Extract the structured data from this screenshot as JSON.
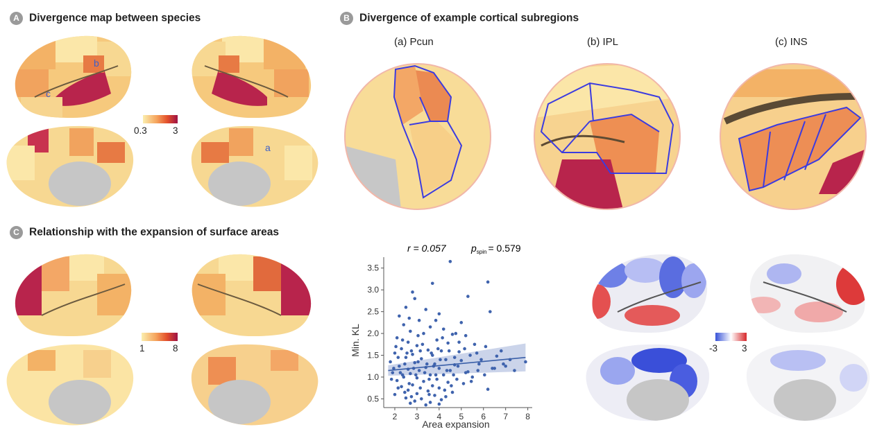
{
  "panels": {
    "A": {
      "badge": "A",
      "title": "Divergence map between species",
      "callouts": [
        "b",
        "c",
        "a"
      ],
      "colorbar": {
        "min_label": "0.3",
        "max_label": "3",
        "colors": [
          "#fbeeae",
          "#f5a35c",
          "#e3502b",
          "#9e1245"
        ]
      }
    },
    "B": {
      "badge": "B",
      "title": "Divergence of example cortical subregions",
      "subregions": [
        "(a) Pcun",
        "(b) IPL",
        "(c) INS"
      ]
    },
    "C": {
      "badge": "C",
      "title": "Relationship with the expansion of surface areas",
      "colorbar_area": {
        "min_label": "1",
        "max_label": "8",
        "colors": [
          "#fbeeae",
          "#f5a35c",
          "#e3502b",
          "#9e1245"
        ]
      },
      "colorbar_diff": {
        "min_label": "-3",
        "max_label": "3",
        "colors": [
          "#3752d8",
          "#ffffff",
          "#d7282b"
        ]
      }
    }
  },
  "chart_data": {
    "type": "scatter",
    "title_r": "r = 0.057",
    "title_p_sym": "p",
    "title_p_sub": "spin",
    "title_p_val": "= 0.579",
    "xlabel": "Area expansion",
    "ylabel": "Min. KL",
    "xlim": [
      1.5,
      8.2
    ],
    "ylim": [
      0.3,
      3.75
    ],
    "xticks": [
      "2",
      "3",
      "4",
      "5",
      "6",
      "7",
      "8"
    ],
    "yticks": [
      "0.5",
      "1.0",
      "1.5",
      "2.0",
      "2.5",
      "3.0",
      "3.5"
    ],
    "fit": {
      "x": [
        1.7,
        7.9
      ],
      "y": [
        1.15,
        1.45
      ],
      "ci_half_width_start": 0.12,
      "ci_half_width_end": 0.32
    },
    "points": [
      [
        4.5,
        3.65
      ],
      [
        3.7,
        3.15
      ],
      [
        6.2,
        3.18
      ],
      [
        2.8,
        2.95
      ],
      [
        5.3,
        2.85
      ],
      [
        2.9,
        2.8
      ],
      [
        2.5,
        2.6
      ],
      [
        3.4,
        2.55
      ],
      [
        6.3,
        2.5
      ],
      [
        2.2,
        2.4
      ],
      [
        4.0,
        2.45
      ],
      [
        3.1,
        2.3
      ],
      [
        5.0,
        2.25
      ],
      [
        2.4,
        2.2
      ],
      [
        3.6,
        2.15
      ],
      [
        4.2,
        2.1
      ],
      [
        2.7,
        2.05
      ],
      [
        3.3,
        2.0
      ],
      [
        4.6,
        1.98
      ],
      [
        5.2,
        1.95
      ],
      [
        2.1,
        1.9
      ],
      [
        3.9,
        1.85
      ],
      [
        2.6,
        1.8
      ],
      [
        4.4,
        1.78
      ],
      [
        5.6,
        1.75
      ],
      [
        3.0,
        1.72
      ],
      [
        6.1,
        1.7
      ],
      [
        2.3,
        1.65
      ],
      [
        3.5,
        1.62
      ],
      [
        4.1,
        1.6
      ],
      [
        4.9,
        1.58
      ],
      [
        2.0,
        1.55
      ],
      [
        2.8,
        1.52
      ],
      [
        3.7,
        1.5
      ],
      [
        5.4,
        1.5
      ],
      [
        6.6,
        1.48
      ],
      [
        2.5,
        1.45
      ],
      [
        3.2,
        1.42
      ],
      [
        4.3,
        1.4
      ],
      [
        5.0,
        1.38
      ],
      [
        1.8,
        1.35
      ],
      [
        2.9,
        1.33
      ],
      [
        3.8,
        1.3
      ],
      [
        4.7,
        1.28
      ],
      [
        5.8,
        1.3
      ],
      [
        7.0,
        1.25
      ],
      [
        2.2,
        1.25
      ],
      [
        3.4,
        1.22
      ],
      [
        4.0,
        1.2
      ],
      [
        6.4,
        1.2
      ],
      [
        2.6,
        1.18
      ],
      [
        3.1,
        1.15
      ],
      [
        4.5,
        1.15
      ],
      [
        5.3,
        1.12
      ],
      [
        1.9,
        1.1
      ],
      [
        2.7,
        1.08
      ],
      [
        3.6,
        1.05
      ],
      [
        4.2,
        1.05
      ],
      [
        5.5,
        1.0
      ],
      [
        2.4,
        1.0
      ],
      [
        3.0,
        0.98
      ],
      [
        3.9,
        0.95
      ],
      [
        4.8,
        0.95
      ],
      [
        2.1,
        0.92
      ],
      [
        3.3,
        0.9
      ],
      [
        4.4,
        0.88
      ],
      [
        5.1,
        0.85
      ],
      [
        2.8,
        0.82
      ],
      [
        3.7,
        0.8
      ],
      [
        2.3,
        0.78
      ],
      [
        4.0,
        0.75
      ],
      [
        6.2,
        0.72
      ],
      [
        2.6,
        0.7
      ],
      [
        3.5,
        0.68
      ],
      [
        4.6,
        0.65
      ],
      [
        3.0,
        0.62
      ],
      [
        2.0,
        0.6
      ],
      [
        3.8,
        0.58
      ],
      [
        4.3,
        0.55
      ],
      [
        2.5,
        0.52
      ],
      [
        3.2,
        0.5
      ],
      [
        4.1,
        0.48
      ],
      [
        2.9,
        0.45
      ],
      [
        3.6,
        0.42
      ],
      [
        2.7,
        0.4
      ],
      [
        4.0,
        0.38
      ],
      [
        3.4,
        0.36
      ],
      [
        4.7,
        1.45
      ],
      [
        5.7,
        1.55
      ],
      [
        6.8,
        1.6
      ],
      [
        7.4,
        1.15
      ],
      [
        7.9,
        1.35
      ],
      [
        6.9,
        1.3
      ],
      [
        2.05,
        1.7
      ],
      [
        2.35,
        1.05
      ],
      [
        2.75,
        1.6
      ],
      [
        3.05,
        1.35
      ],
      [
        3.25,
        1.75
      ],
      [
        3.55,
        0.95
      ],
      [
        3.75,
        1.25
      ],
      [
        4.15,
        1.9
      ],
      [
        4.35,
        1.15
      ],
      [
        4.55,
        0.8
      ],
      [
        4.85,
        1.25
      ],
      [
        5.15,
        1.65
      ],
      [
        5.45,
        0.9
      ],
      [
        5.75,
        1.15
      ],
      [
        6.05,
        1.05
      ],
      [
        1.95,
        1.2
      ],
      [
        2.15,
        1.45
      ],
      [
        2.45,
        1.3
      ],
      [
        2.65,
        0.85
      ],
      [
        2.85,
        1.2
      ],
      [
        3.15,
        1.6
      ],
      [
        3.45,
        1.3
      ],
      [
        3.65,
        1.55
      ],
      [
        3.85,
        1.05
      ],
      [
        4.05,
        1.4
      ],
      [
        4.25,
        0.7
      ],
      [
        4.45,
        1.6
      ],
      [
        4.65,
        1.05
      ],
      [
        2.25,
        1.1
      ],
      [
        2.55,
        1.55
      ],
      [
        2.95,
        1.05
      ],
      [
        3.35,
        1.1
      ],
      [
        3.95,
        1.65
      ],
      [
        2.45,
        0.65
      ],
      [
        3.55,
        0.6
      ],
      [
        4.9,
        1.8
      ],
      [
        5.9,
        1.4
      ],
      [
        2.15,
        0.75
      ],
      [
        3.15,
        0.75
      ],
      [
        1.85,
        0.95
      ],
      [
        2.75,
        0.55
      ],
      [
        6.5,
        1.2
      ],
      [
        5.2,
        1.1
      ],
      [
        7.2,
        1.4
      ],
      [
        3.05,
        1.95
      ],
      [
        2.35,
        1.85
      ],
      [
        3.85,
        2.3
      ],
      [
        4.75,
        2.0
      ],
      [
        2.65,
        2.35
      ]
    ]
  }
}
